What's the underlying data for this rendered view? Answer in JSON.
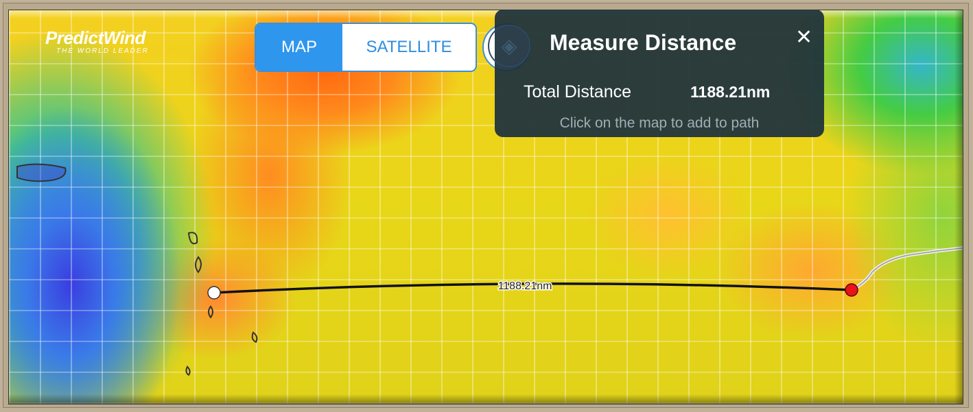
{
  "logo": {
    "name": "PredictWind",
    "tagline": "THE WORLD LEADER"
  },
  "map_type_toggle": {
    "options": [
      "MAP",
      "SATELLITE"
    ],
    "selected": "MAP"
  },
  "layers_button": {
    "icon": "layers-icon"
  },
  "measure_panel": {
    "title": "Measure Distance",
    "total_label": "Total Distance",
    "total_value": "1188.21nm",
    "hint": "Click on the map to add to path",
    "close_icon": "close-icon"
  },
  "route": {
    "label": "1188.21nm",
    "start_color": "#ffffff",
    "end_color": "#e8141c"
  },
  "colors": {
    "accent": "#2f96ee",
    "panel": "#1c303c"
  }
}
